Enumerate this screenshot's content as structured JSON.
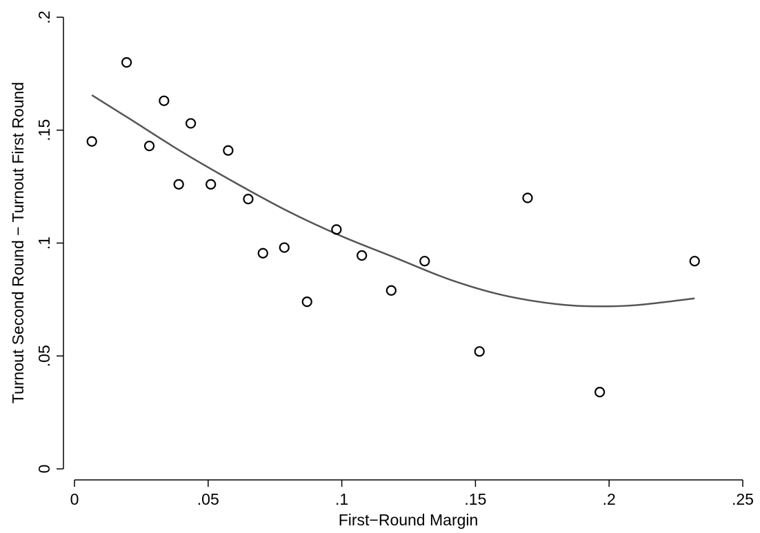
{
  "chart_data": {
    "type": "scatter",
    "xlabel": "First−Round Margin",
    "ylabel": "Turnout Second Round − Turnout First Round",
    "xlim": [
      0,
      0.25
    ],
    "ylim": [
      0,
      0.2
    ],
    "x_ticks": [
      {
        "value": 0,
        "label": "0"
      },
      {
        "value": 0.05,
        "label": ".05"
      },
      {
        "value": 0.1,
        "label": ".1"
      },
      {
        "value": 0.15,
        "label": ".15"
      },
      {
        "value": 0.2,
        "label": ".2"
      },
      {
        "value": 0.25,
        "label": ".25"
      }
    ],
    "y_ticks": [
      {
        "value": 0,
        "label": "0"
      },
      {
        "value": 0.05,
        "label": ".05"
      },
      {
        "value": 0.1,
        "label": ".1"
      },
      {
        "value": 0.15,
        "label": ".15"
      },
      {
        "value": 0.2,
        "label": ".2"
      }
    ],
    "grid": false,
    "series": [
      {
        "type": "scatter",
        "marker": "hollow-circle",
        "color": "#000000",
        "points": [
          {
            "x": 0.0065,
            "y": 0.145
          },
          {
            "x": 0.0195,
            "y": 0.18
          },
          {
            "x": 0.028,
            "y": 0.143
          },
          {
            "x": 0.0335,
            "y": 0.163
          },
          {
            "x": 0.039,
            "y": 0.126
          },
          {
            "x": 0.0435,
            "y": 0.153
          },
          {
            "x": 0.051,
            "y": 0.126
          },
          {
            "x": 0.0575,
            "y": 0.141
          },
          {
            "x": 0.065,
            "y": 0.1195
          },
          {
            "x": 0.0705,
            "y": 0.0955
          },
          {
            "x": 0.0785,
            "y": 0.098
          },
          {
            "x": 0.087,
            "y": 0.074
          },
          {
            "x": 0.098,
            "y": 0.106
          },
          {
            "x": 0.1075,
            "y": 0.0945
          },
          {
            "x": 0.1185,
            "y": 0.079
          },
          {
            "x": 0.131,
            "y": 0.092
          },
          {
            "x": 0.1515,
            "y": 0.052
          },
          {
            "x": 0.1695,
            "y": 0.12
          },
          {
            "x": 0.1965,
            "y": 0.034
          },
          {
            "x": 0.232,
            "y": 0.092
          }
        ]
      },
      {
        "type": "line",
        "style": "quadratic-fit",
        "color": "#555555",
        "points": [
          {
            "x": 0.0065,
            "y": 0.1655
          },
          {
            "x": 0.02,
            "y": 0.1555
          },
          {
            "x": 0.04,
            "y": 0.1405
          },
          {
            "x": 0.06,
            "y": 0.1268
          },
          {
            "x": 0.08,
            "y": 0.114
          },
          {
            "x": 0.1,
            "y": 0.103
          },
          {
            "x": 0.12,
            "y": 0.0935
          },
          {
            "x": 0.14,
            "y": 0.084
          },
          {
            "x": 0.16,
            "y": 0.077
          },
          {
            "x": 0.18,
            "y": 0.073
          },
          {
            "x": 0.195,
            "y": 0.072
          },
          {
            "x": 0.21,
            "y": 0.0725
          },
          {
            "x": 0.232,
            "y": 0.0755
          }
        ]
      }
    ]
  }
}
